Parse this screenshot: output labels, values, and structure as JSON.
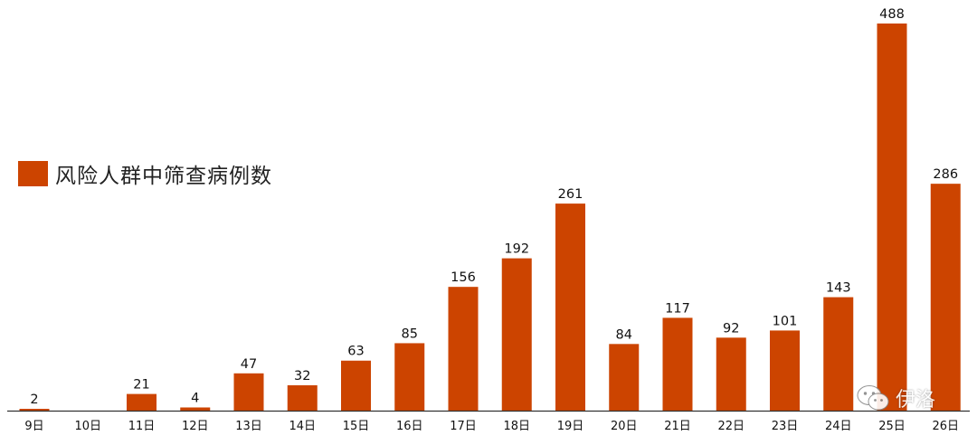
{
  "chart_data": {
    "type": "bar",
    "title": "",
    "xlabel": "",
    "ylabel": "",
    "categories": [
      "9日",
      "10日",
      "11日",
      "12日",
      "13日",
      "14日",
      "15日",
      "16日",
      "17日",
      "18日",
      "19日",
      "20日",
      "21日",
      "22日",
      "23日",
      "24日",
      "25日",
      "26日"
    ],
    "series": [
      {
        "name": "风险人群中筛查病例数",
        "values": [
          2,
          null,
          21,
          4,
          47,
          32,
          63,
          85,
          156,
          192,
          261,
          84,
          117,
          92,
          101,
          143,
          488,
          286
        ]
      }
    ],
    "data_labels": [
      "2",
      "",
      "21",
      "4",
      "47",
      "32",
      "63",
      "85",
      "156",
      "192",
      "261",
      "84",
      "117",
      "92",
      "101",
      "143",
      "488",
      "286"
    ],
    "ylim": [
      0,
      500
    ],
    "grid": false,
    "legend_position": "left-middle",
    "bar_color": "#CC4400"
  },
  "watermark": {
    "text": "伊洛",
    "icon": "wechat-icon"
  }
}
